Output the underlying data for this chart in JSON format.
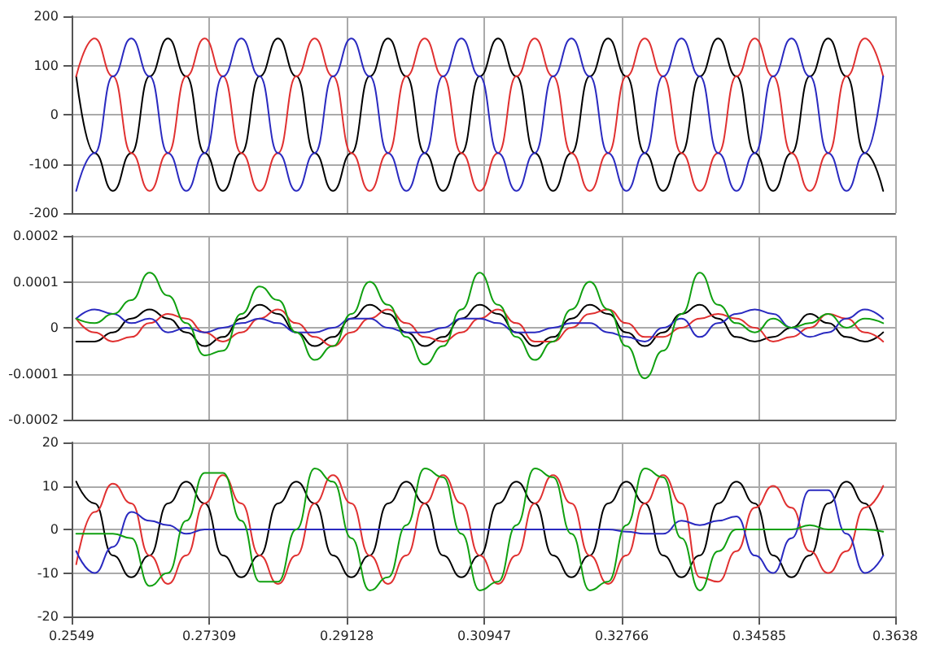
{
  "chart_data": [
    {
      "type": "line",
      "ylim": [
        -200,
        200
      ],
      "yticks": [
        -200,
        -100,
        0,
        100,
        200
      ],
      "xlim": [
        0.2549,
        0.3638
      ],
      "xticks": [
        0.2549,
        0.27309,
        0.29128,
        0.30947,
        0.32766,
        0.34585,
        0.3638
      ],
      "grid": true,
      "tick_labels": "y",
      "marker": "none",
      "line_style": "solid",
      "x": [
        0.25551,
        0.25794,
        0.26036,
        0.26279,
        0.26521,
        0.26764,
        0.27006,
        0.27249,
        0.27491,
        0.27734,
        0.27976,
        0.28219,
        0.28461,
        0.28704,
        0.28946,
        0.29189,
        0.29431,
        0.29674,
        0.29916,
        0.30159,
        0.30401,
        0.30644,
        0.30886,
        0.31129,
        0.31371,
        0.31614,
        0.31856,
        0.32099,
        0.32341,
        0.32584,
        0.32826,
        0.33069,
        0.33311,
        0.33554,
        0.33796,
        0.34039,
        0.34281,
        0.34524,
        0.34766,
        0.35009,
        0.35251,
        0.35494,
        0.35736,
        0.35979,
        0.36221
      ],
      "series": [
        {
          "color": "#000000",
          "values": [
            78,
            -78,
            -155,
            -78,
            78,
            155,
            78,
            -78,
            -155,
            -78,
            78,
            155,
            78,
            -78,
            -155,
            -78,
            78,
            155,
            78,
            -78,
            -155,
            -78,
            78,
            155,
            78,
            -78,
            -155,
            -78,
            78,
            155,
            78,
            -78,
            -155,
            -78,
            78,
            155,
            78,
            -78,
            -155,
            -78,
            78,
            155,
            78,
            -78,
            -155
          ]
        },
        {
          "color": "#e03030",
          "values": [
            78,
            155,
            78,
            -78,
            -155,
            -78,
            78,
            155,
            78,
            -78,
            -155,
            -78,
            78,
            155,
            78,
            -78,
            -155,
            -78,
            78,
            155,
            78,
            -78,
            -155,
            -78,
            78,
            155,
            78,
            -78,
            -155,
            -78,
            78,
            155,
            78,
            -78,
            -155,
            -78,
            78,
            155,
            78,
            -78,
            -155,
            -78,
            78,
            155,
            78
          ]
        },
        {
          "color": "#2a2ac0",
          "values": [
            -155,
            -78,
            78,
            155,
            78,
            -78,
            -155,
            -78,
            78,
            155,
            78,
            -78,
            -155,
            -78,
            78,
            155,
            78,
            -78,
            -155,
            -78,
            78,
            155,
            78,
            -78,
            -155,
            -78,
            78,
            155,
            78,
            -78,
            -155,
            -78,
            78,
            155,
            78,
            -78,
            -155,
            -78,
            78,
            155,
            78,
            -78,
            -155,
            -78,
            78
          ]
        }
      ]
    },
    {
      "type": "line",
      "ylim": [
        -0.0002,
        0.0002
      ],
      "yticks": [
        -0.0002,
        -0.0001,
        0,
        0.0001,
        0.0002
      ],
      "xlim": [
        0.2549,
        0.3638
      ],
      "xticks": [
        0.2549,
        0.27309,
        0.29128,
        0.30947,
        0.32766,
        0.34585,
        0.3638
      ],
      "grid": true,
      "tick_labels": "y",
      "marker": "none",
      "line_style": "solid",
      "x": [
        0.25551,
        0.25794,
        0.26036,
        0.26279,
        0.26521,
        0.26764,
        0.27006,
        0.27249,
        0.27491,
        0.27734,
        0.27976,
        0.28219,
        0.28461,
        0.28704,
        0.28946,
        0.29189,
        0.29431,
        0.29674,
        0.29916,
        0.30159,
        0.30401,
        0.30644,
        0.30886,
        0.31129,
        0.31371,
        0.31614,
        0.31856,
        0.32099,
        0.32341,
        0.32584,
        0.32826,
        0.33069,
        0.33311,
        0.33554,
        0.33796,
        0.34039,
        0.34281,
        0.34524,
        0.34766,
        0.35009,
        0.35251,
        0.35494,
        0.35736,
        0.35979,
        0.36221
      ],
      "series": [
        {
          "color": "#000000",
          "values": [
            -3e-05,
            -3e-05,
            -1e-05,
            2e-05,
            4e-05,
            2e-05,
            -1e-05,
            -4e-05,
            -2e-05,
            2e-05,
            5e-05,
            3e-05,
            -1e-05,
            -4e-05,
            -2e-05,
            2e-05,
            5e-05,
            3e-05,
            -1e-05,
            -4e-05,
            -2e-05,
            2e-05,
            5e-05,
            3e-05,
            -1e-05,
            -4e-05,
            -2e-05,
            2e-05,
            5e-05,
            3e-05,
            -1e-05,
            -4e-05,
            -1e-05,
            3e-05,
            5e-05,
            2e-05,
            -2e-05,
            -3e-05,
            -2e-05,
            0,
            3e-05,
            1e-05,
            -2e-05,
            -3e-05,
            -1e-05
          ]
        },
        {
          "color": "#e03030",
          "values": [
            2e-05,
            -1e-05,
            -3e-05,
            -2e-05,
            1e-05,
            3e-05,
            2e-05,
            -1e-05,
            -3e-05,
            -1e-05,
            2e-05,
            4e-05,
            1e-05,
            -2e-05,
            -4e-05,
            -1e-05,
            2e-05,
            4e-05,
            1e-05,
            -2e-05,
            -3e-05,
            -1e-05,
            2e-05,
            4e-05,
            1e-05,
            -3e-05,
            -3e-05,
            0,
            3e-05,
            4e-05,
            1e-05,
            -2e-05,
            -2e-05,
            0,
            2e-05,
            3e-05,
            2e-05,
            0,
            -3e-05,
            -2e-05,
            0,
            3e-05,
            2e-05,
            -1e-05,
            -3e-05
          ]
        },
        {
          "color": "#2a2ac0",
          "values": [
            2e-05,
            4e-05,
            3e-05,
            1e-05,
            2e-05,
            -1e-05,
            0,
            -1e-05,
            0,
            1e-05,
            2e-05,
            1e-05,
            -1e-05,
            -1e-05,
            0,
            2e-05,
            2e-05,
            0,
            -1e-05,
            -1e-05,
            0,
            2e-05,
            2e-05,
            1e-05,
            -1e-05,
            -1e-05,
            0,
            1e-05,
            1e-05,
            -1e-05,
            -2e-05,
            -3e-05,
            0,
            2e-05,
            -2e-05,
            1e-05,
            3e-05,
            4e-05,
            3e-05,
            0,
            -2e-05,
            -1e-05,
            2e-05,
            4e-05,
            2e-05
          ]
        },
        {
          "color": "#10a010",
          "values": [
            2e-05,
            1e-05,
            3e-05,
            6e-05,
            0.00012,
            7e-05,
            1e-05,
            -6e-05,
            -5e-05,
            3e-05,
            9e-05,
            6e-05,
            -1e-05,
            -7e-05,
            -4e-05,
            3e-05,
            0.0001,
            5e-05,
            -2e-05,
            -8e-05,
            -4e-05,
            4e-05,
            0.00012,
            5e-05,
            -2e-05,
            -7e-05,
            -3e-05,
            4e-05,
            0.0001,
            4e-05,
            -4e-05,
            -0.00011,
            -5e-05,
            3e-05,
            0.00012,
            5e-05,
            1e-05,
            -1e-05,
            2e-05,
            0,
            1e-05,
            3e-05,
            0,
            2e-05,
            1e-05
          ]
        }
      ]
    },
    {
      "type": "line",
      "ylim": [
        -20,
        20
      ],
      "yticks": [
        -20,
        -10,
        0,
        10,
        20
      ],
      "xlim": [
        0.2549,
        0.3638
      ],
      "xticks": [
        0.2549,
        0.27309,
        0.29128,
        0.30947,
        0.32766,
        0.34585,
        0.3638
      ],
      "grid": true,
      "marker": "none",
      "line_style": "solid",
      "x": [
        0.25551,
        0.25794,
        0.26036,
        0.26279,
        0.26521,
        0.26764,
        0.27006,
        0.27249,
        0.27491,
        0.27734,
        0.27976,
        0.28219,
        0.28461,
        0.28704,
        0.28946,
        0.29189,
        0.29431,
        0.29674,
        0.29916,
        0.30159,
        0.30401,
        0.30644,
        0.30886,
        0.31129,
        0.31371,
        0.31614,
        0.31856,
        0.32099,
        0.32341,
        0.32584,
        0.32826,
        0.33069,
        0.33311,
        0.33554,
        0.33796,
        0.34039,
        0.34281,
        0.34524,
        0.34766,
        0.35009,
        0.35251,
        0.35494,
        0.35736,
        0.35979,
        0.36221
      ],
      "series": [
        {
          "color": "#000000",
          "values": [
            11,
            6,
            -6,
            -11,
            -6,
            6,
            11,
            6,
            -6,
            -11,
            -6,
            6,
            11,
            6,
            -6,
            -11,
            -6,
            6,
            11,
            6,
            -6,
            -11,
            -6,
            6,
            11,
            6,
            -6,
            -11,
            -6,
            6,
            11,
            6,
            -6,
            -11,
            -6,
            6,
            11,
            6,
            -6,
            -11,
            -6,
            6,
            11,
            6,
            -6
          ]
        },
        {
          "color": "#e03030",
          "values": [
            -8,
            4,
            10.5,
            6,
            -6,
            -12.5,
            -6,
            6,
            12.5,
            6,
            -6,
            -12.5,
            -6,
            6,
            12.5,
            6,
            -6,
            -12.5,
            -6,
            6,
            12.5,
            6,
            -6,
            -12.5,
            -6,
            6,
            12.5,
            6,
            -6,
            -12.5,
            -6,
            6,
            12.5,
            6,
            -11,
            -12,
            -5,
            5,
            10,
            5,
            -5,
            -10,
            -5,
            5,
            10
          ]
        },
        {
          "color": "#2a2ac0",
          "values": [
            -5,
            -10,
            -4,
            4,
            2,
            1,
            -1,
            0,
            0,
            0,
            0,
            0,
            0,
            0,
            0,
            0,
            0,
            0,
            0,
            0,
            0,
            0,
            0,
            0,
            0,
            0,
            0,
            0,
            0,
            0,
            -0.5,
            -1,
            -1,
            2,
            1,
            2,
            3,
            -6,
            -10,
            -2,
            9,
            9,
            -1,
            -10,
            -6
          ]
        },
        {
          "color": "#10a010",
          "values": [
            -1,
            -1,
            -1,
            -2,
            -13,
            -10,
            2,
            13,
            13,
            2,
            -12,
            -12,
            0,
            14,
            11,
            -2,
            -14,
            -11,
            1,
            14,
            12,
            -1,
            -14,
            -12,
            1,
            14,
            12,
            -1,
            -14,
            -12,
            1,
            14,
            12,
            -2,
            -14,
            -5,
            0,
            0,
            0,
            0,
            1,
            0,
            0,
            0,
            -0.5
          ]
        }
      ]
    }
  ]
}
